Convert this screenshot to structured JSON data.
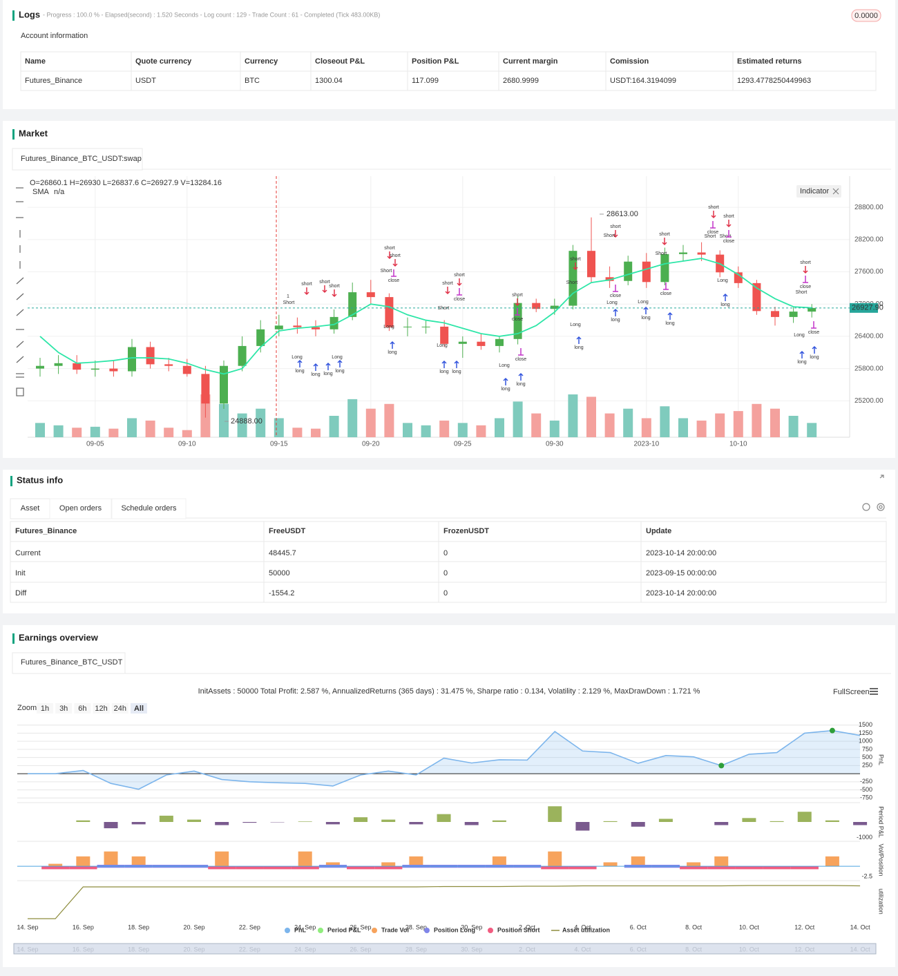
{
  "logs": {
    "title": "Logs",
    "progress": "- Progress : 100.0 % - Elapsed(second) : 1.520  Seconds - Log count : 129 - Trade Count : 61 - Completed (Tick 483.00KB)",
    "badge": "0.0000"
  },
  "account": {
    "title": "Account information",
    "columns": [
      "Name",
      "Quote currency",
      "Currency",
      "Closeout P&L",
      "Position P&L",
      "Current margin",
      "Comission",
      "Estimated returns"
    ],
    "rows": [
      [
        "Futures_Binance",
        "USDT",
        "BTC",
        "1300.04",
        "117.099",
        "2680.9999",
        "USDT:164.3194099",
        "1293.4778250449963"
      ]
    ]
  },
  "market": {
    "title": "Market",
    "tab": "Futures_Binance_BTC_USDT:swap",
    "ohlc": "O=26860.1 H=26930 L=26837.6 C=26927.9 V=13284.16",
    "sma_label": "SMA",
    "sma_value": "n/a",
    "indicator": "Indicator",
    "high_label": "28613.00",
    "low_label": "24888.00",
    "last_label": "26927.90",
    "signals": [
      "short",
      "short",
      "short",
      "Short",
      "1",
      "Long",
      "long",
      "long",
      "long",
      "long",
      "Long",
      "short",
      "short",
      "Short",
      "close",
      "Long",
      "long",
      "short",
      "short",
      "Short",
      "close",
      "Long",
      "long",
      "long",
      "short",
      "close",
      "Long",
      "long",
      "long",
      "close",
      "short",
      "Short",
      "Long",
      "long",
      "short",
      "Short",
      "close",
      "Long",
      "long",
      "short",
      "Short",
      "close",
      "Long",
      "long",
      "long",
      "short",
      "short",
      "close",
      "Short",
      "Short",
      "close",
      "Long",
      "long",
      "short",
      "close",
      "Short",
      "Long",
      "close",
      "long",
      "long"
    ]
  },
  "status": {
    "title": "Status info",
    "tabs": [
      "Asset",
      "Open orders",
      "Schedule orders"
    ],
    "columns": [
      "Futures_Binance",
      "FreeUSDT",
      "FrozenUSDT",
      "Update"
    ],
    "rows": [
      [
        "Current",
        "48445.7",
        "0",
        "2023-10-14 20:00:00"
      ],
      [
        "Init",
        "50000",
        "0",
        "2023-09-15 00:00:00"
      ],
      [
        "Diff",
        "-1554.2",
        "0",
        "2023-10-14 20:00:00"
      ]
    ]
  },
  "earnings": {
    "title": "Earnings overview",
    "tab": "Futures_Binance_BTC_USDT",
    "summary": "InitAssets : 50000 Total Profit: 2.587 %, AnnualizedReturns (365 days) : 31.475 %, Sharpe ratio : 0.134, Volatility : 2.129 %, MaxDrawDown : 1.721 %",
    "fullscreen": "FullScreen",
    "zoom": "Zoom",
    "zoom_buttons": [
      "1h",
      "3h",
      "6h",
      "12h",
      "24h",
      "All"
    ]
  },
  "chart_data": [
    {
      "type": "candlestick",
      "categories": [
        null,
        null,
        null,
        "09-05",
        null,
        null,
        null,
        null,
        "09-10",
        null,
        null,
        null,
        null,
        "09-15",
        null,
        null,
        null,
        null,
        "09-20",
        null,
        null,
        null,
        null,
        "09-25",
        null,
        null,
        null,
        null,
        "09-30",
        null,
        null,
        null,
        null,
        "2023-10",
        null,
        null,
        null,
        null,
        "10-10",
        null,
        null,
        null,
        null
      ],
      "open": [
        25800,
        25850,
        25900,
        25780,
        25800,
        25750,
        26200,
        25880,
        25850,
        25700,
        25150,
        25850,
        26220,
        26530,
        26600,
        26570,
        26530,
        26760,
        27220,
        27130,
        26570,
        26580,
        26580,
        26260,
        26300,
        26220,
        26350,
        27020,
        26910,
        26970,
        27990,
        27500,
        27430,
        27790,
        27410,
        27930,
        27960,
        27920,
        27590,
        27390,
        26870,
        26760,
        26860
      ],
      "high": [
        26000,
        26050,
        26050,
        25950,
        25950,
        26350,
        26300,
        26000,
        25980,
        25850,
        25950,
        26400,
        26700,
        26800,
        26750,
        26700,
        26900,
        27400,
        27450,
        27200,
        26750,
        26700,
        26700,
        26400,
        26450,
        26400,
        27150,
        27100,
        27100,
        28100,
        28613,
        27700,
        27900,
        27950,
        28050,
        28100,
        28150,
        28000,
        27700,
        27450,
        26950,
        26950,
        27000
      ],
      "low": [
        25650,
        25700,
        25700,
        25650,
        25650,
        25650,
        25800,
        25750,
        25650,
        24888,
        25050,
        25750,
        26100,
        26400,
        26450,
        26400,
        26450,
        26700,
        27000,
        26500,
        26400,
        26450,
        26200,
        26000,
        26150,
        26100,
        26250,
        26850,
        26800,
        26900,
        27400,
        27300,
        27350,
        27300,
        27350,
        27800,
        27800,
        27500,
        27300,
        26800,
        26600,
        26650,
        26750
      ],
      "close": [
        25850,
        25900,
        25780,
        25800,
        25750,
        26200,
        25880,
        25850,
        25700,
        25150,
        25850,
        26220,
        26530,
        26600,
        26570,
        26530,
        26760,
        27220,
        27130,
        26570,
        26580,
        26580,
        26260,
        26300,
        26220,
        26350,
        27020,
        26910,
        26970,
        27990,
        27500,
        27430,
        27790,
        27410,
        27930,
        27960,
        27920,
        27590,
        27390,
        26870,
        26760,
        26860,
        26928
      ],
      "volume": [
        300,
        250,
        200,
        220,
        180,
        400,
        350,
        200,
        150,
        900,
        700,
        500,
        600,
        400,
        200,
        180,
        450,
        800,
        600,
        700,
        300,
        250,
        350,
        300,
        250,
        400,
        750,
        500,
        350,
        900,
        850,
        500,
        600,
        400,
        650,
        400,
        350,
        500,
        550,
        700,
        600,
        450,
        300
      ],
      "up_color": "#4caf50",
      "down_color": "#ef5350",
      "volume_up_color": "#7fcbbd",
      "volume_down_color": "#f4a19d",
      "series": [
        {
          "name": "SMA",
          "color": "#2ee6a8",
          "values": [
            26400,
            26100,
            25900,
            25920,
            25950,
            26000,
            26000,
            25980,
            25900,
            25780,
            25700,
            25800,
            26200,
            26500,
            26550,
            26580,
            26620,
            26800,
            27000,
            26950,
            26800,
            26700,
            26650,
            26550,
            26450,
            26400,
            26450,
            26600,
            26850,
            27200,
            27400,
            27450,
            27550,
            27650,
            27750,
            27800,
            27850,
            27750,
            27550,
            27300,
            27100,
            26950,
            26930
          ]
        }
      ],
      "ylim": [
        24600,
        29380
      ],
      "yticks": [
        {
          "value": 25200,
          "label": "25200.00"
        },
        {
          "value": 25800,
          "label": "25800.00"
        },
        {
          "value": 26400,
          "label": "26400.00"
        },
        {
          "value": 27000,
          "label": "27000.00"
        },
        {
          "value": 27600,
          "label": "27600.00"
        },
        {
          "value": 28200,
          "label": "28200.00"
        },
        {
          "value": 28800,
          "label": "28800.00"
        }
      ],
      "last": 26927.9,
      "grid": true
    },
    {
      "type": "combo",
      "categories": [
        "14. Sep",
        null,
        "16. Sep",
        null,
        "18. Sep",
        null,
        "20. Sep",
        null,
        "22. Sep",
        null,
        "24. Sep",
        null,
        "26. Sep",
        null,
        "28. Sep",
        null,
        "30. Sep",
        null,
        "2. Oct",
        null,
        "4. Oct",
        null,
        "6. Oct",
        null,
        "8. Oct",
        null,
        "10. Oct",
        null,
        "12. Oct",
        null,
        "14. Oct"
      ],
      "series": [
        {
          "name": "PnL",
          "color": "#7cb5ec",
          "values": [
            0,
            0,
            100,
            -300,
            -480,
            -40,
            80,
            -180,
            -250,
            -280,
            -300,
            -380,
            -40,
            80,
            -40,
            480,
            330,
            430,
            420,
            1300,
            700,
            650,
            320,
            560,
            520,
            250,
            600,
            650,
            1250,
            1330,
            1180
          ]
        },
        {
          "name": "Period P&L",
          "color": "#90ed7d",
          "bar_color": "#9bb35c",
          "negative_color": "#7a5a8e",
          "values": [
            null,
            null,
            100,
            -400,
            -150,
            400,
            150,
            -200,
            -50,
            -20,
            30,
            -150,
            300,
            150,
            -150,
            500,
            -200,
            100,
            null,
            1000,
            -550,
            50,
            -300,
            200,
            null,
            -200,
            250,
            50,
            650,
            100,
            -200
          ]
        },
        {
          "name": "Trade Vol",
          "color": "#f7a35c",
          "values": [
            0,
            0.5,
            2,
            3,
            2,
            0,
            0,
            3,
            0,
            0,
            3,
            0.8,
            0,
            0.8,
            2,
            0,
            0,
            2,
            0,
            3,
            0,
            0.8,
            2,
            0,
            0.8,
            2,
            0,
            0,
            0,
            2,
            0
          ]
        },
        {
          "name": "Position Long",
          "color": "#8085e9",
          "values": [
            0,
            0,
            0,
            0.3,
            0.3,
            0.3,
            0.3,
            0,
            0,
            0,
            0,
            0.3,
            0,
            0,
            0.3,
            0.3,
            0.3,
            0.3,
            0.3,
            0,
            0,
            0,
            0.3,
            0.3,
            0,
            0,
            0,
            0,
            0,
            0,
            0
          ]
        },
        {
          "name": "Position Short",
          "color": "#f15c80",
          "values": [
            0,
            -0.3,
            -0.3,
            0,
            0,
            0,
            0,
            -0.3,
            -0.3,
            -0.3,
            -0.3,
            0,
            -0.3,
            -0.3,
            0,
            0,
            0,
            0,
            0,
            -0.3,
            -0.3,
            0,
            0,
            0,
            -0.3,
            -0.3,
            -0.3,
            -0.3,
            -0.3,
            0,
            0
          ]
        },
        {
          "name": "Asset utilization",
          "color": "#8d8c3c",
          "values": [
            0,
            0,
            0.92,
            0.92,
            0.92,
            0.92,
            0.92,
            0.92,
            0.92,
            0.92,
            0.92,
            0.92,
            0.92,
            0.92,
            0.92,
            0.93,
            0.93,
            0.93,
            0.94,
            0.94,
            0.95,
            0.95,
            0.95,
            0.95,
            0.95,
            0.95,
            0.96,
            0.96,
            0.96,
            0.96,
            0.95
          ]
        }
      ],
      "ylim": [
        -850,
        1600
      ],
      "yticks": [
        1500,
        1250,
        1000,
        750,
        500,
        250,
        -250,
        -500,
        -750
      ],
      "period_ylim": [
        -1100,
        1100
      ],
      "period_yticks": [
        -1000
      ],
      "vol_ylim": [
        -2.5,
        4.5
      ],
      "vol_yticks": [
        -2.5
      ],
      "util_ylim": [
        0,
        1
      ],
      "axis_titles": [
        "PnL",
        "Period P&L",
        "Vol/Position",
        "utilization"
      ],
      "grid": true
    }
  ]
}
